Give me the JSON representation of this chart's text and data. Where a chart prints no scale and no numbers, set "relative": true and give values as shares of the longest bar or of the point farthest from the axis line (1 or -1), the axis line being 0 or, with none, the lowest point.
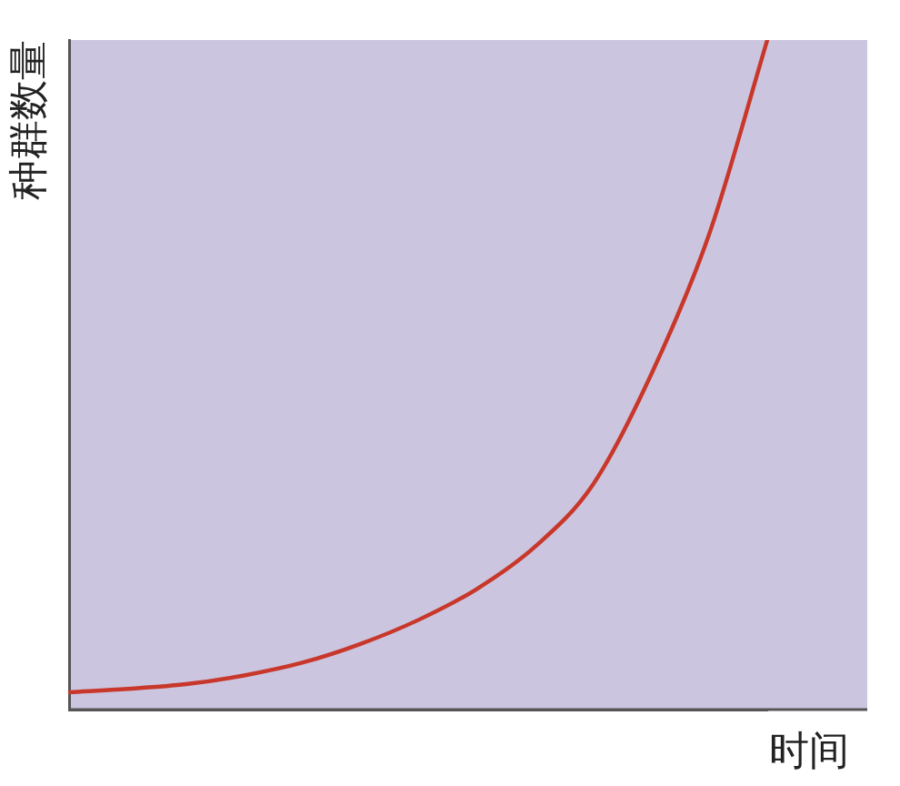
{
  "chart_data": {
    "type": "line",
    "relative": true,
    "xlabel": "时间",
    "ylabel": "种群数量",
    "categories": [
      null,
      null,
      null,
      null,
      null,
      null,
      null,
      null,
      null,
      null,
      null,
      null,
      null
    ],
    "series": [
      {
        "color": "#c8372a",
        "values": [
          0.026,
          0.031,
          0.038,
          0.051,
          0.07,
          0.098,
          0.134,
          0.18,
          0.243,
          0.336,
          0.5,
          0.71,
          1
        ]
      }
    ],
    "grid": false,
    "legend": false,
    "marker": "none",
    "line_style": "solid"
  }
}
